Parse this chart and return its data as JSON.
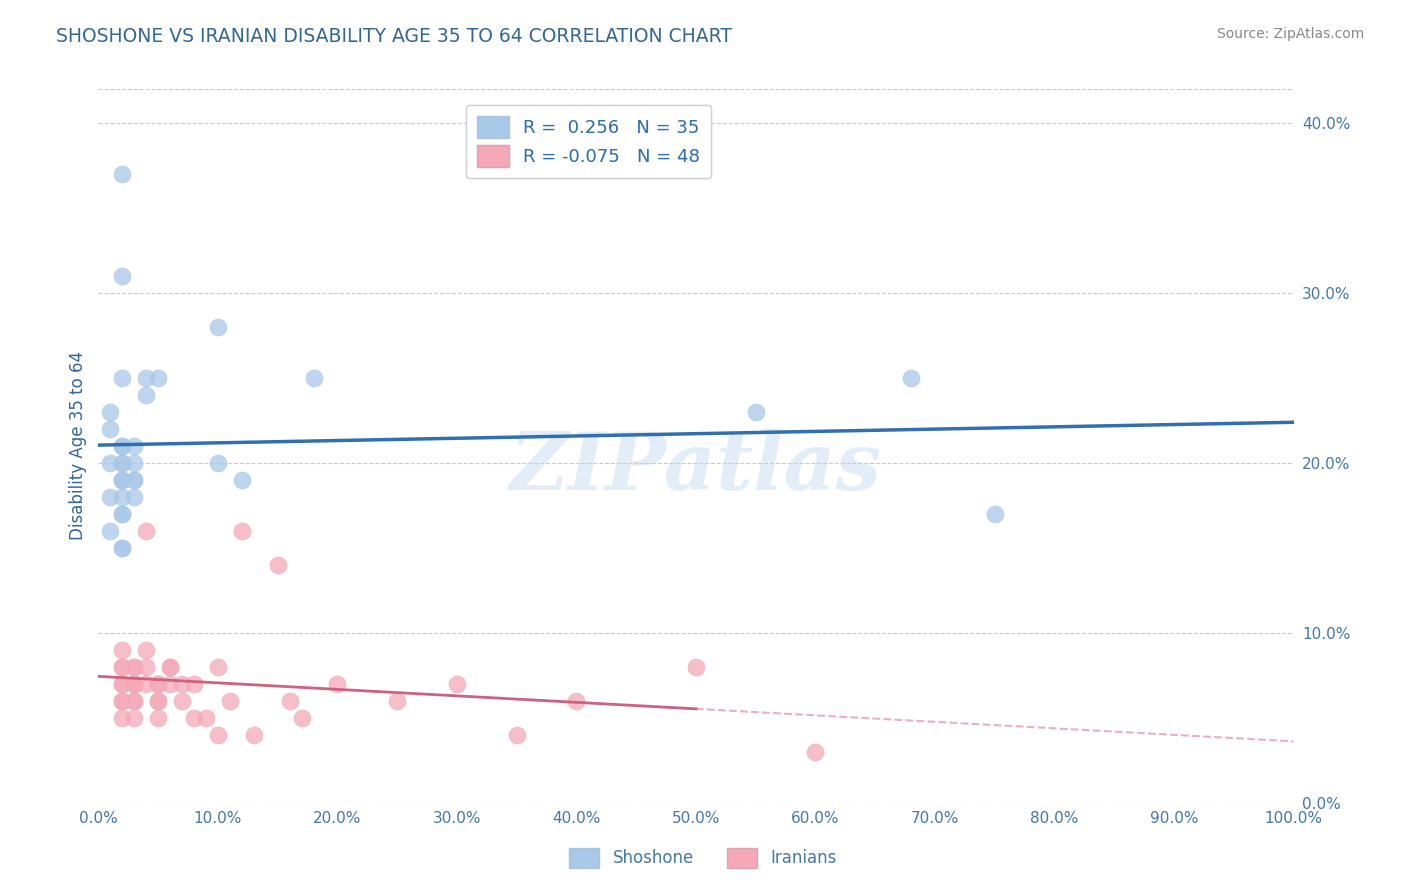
{
  "title": "SHOSHONE VS IRANIAN DISABILITY AGE 35 TO 64 CORRELATION CHART",
  "source": "Source: ZipAtlas.com",
  "ylabel": "Disability Age 35 to 64",
  "xlim": [
    0,
    100
  ],
  "ylim": [
    0,
    42
  ],
  "yticks": [
    0,
    10,
    20,
    30,
    40
  ],
  "xticks": [
    0,
    10,
    20,
    30,
    40,
    50,
    60,
    70,
    80,
    90,
    100
  ],
  "blue_color": "#a8c8e8",
  "pink_color": "#f4a8b8",
  "blue_line_color": "#3070b0",
  "pink_line_color": "#d06080",
  "legend_blue_label": "R =  0.256   N = 35",
  "legend_pink_label": "R = -0.075   N = 48",
  "shoshone_x": [
    2,
    2,
    2,
    1,
    2,
    3,
    3,
    4,
    5,
    2,
    2,
    3,
    3,
    4,
    2,
    2,
    1,
    1,
    1,
    1,
    2,
    3,
    10,
    10,
    12,
    18,
    55,
    68,
    75,
    2,
    2,
    2,
    2,
    2,
    2
  ],
  "shoshone_y": [
    19,
    20,
    20,
    23,
    25,
    19,
    21,
    24,
    25,
    21,
    18,
    20,
    19,
    25,
    21,
    17,
    22,
    20,
    18,
    16,
    15,
    18,
    20,
    28,
    19,
    25,
    23,
    25,
    17,
    19,
    31,
    37,
    19,
    17,
    15
  ],
  "iranian_x": [
    2,
    2,
    2,
    2,
    2,
    2,
    2,
    2,
    3,
    3,
    3,
    3,
    3,
    3,
    3,
    3,
    4,
    4,
    4,
    4,
    5,
    5,
    5,
    5,
    5,
    6,
    6,
    6,
    7,
    7,
    8,
    8,
    9,
    10,
    10,
    11,
    12,
    13,
    15,
    16,
    17,
    20,
    25,
    30,
    35,
    40,
    50,
    60
  ],
  "iranian_y": [
    9,
    8,
    8,
    7,
    7,
    6,
    6,
    5,
    8,
    8,
    7,
    7,
    7,
    6,
    6,
    5,
    9,
    8,
    7,
    16,
    7,
    7,
    6,
    6,
    5,
    8,
    8,
    7,
    7,
    6,
    7,
    5,
    5,
    8,
    4,
    6,
    16,
    4,
    14,
    6,
    5,
    7,
    6,
    7,
    4,
    6,
    8,
    3
  ],
  "watermark": "ZIPatlas",
  "background_color": "#ffffff",
  "grid_color": "#c8c8d8",
  "title_color": "#336699",
  "axis_label_color": "#336699",
  "tick_color": "#4477aa",
  "source_color": "#888888",
  "pink_dash_start": 50
}
